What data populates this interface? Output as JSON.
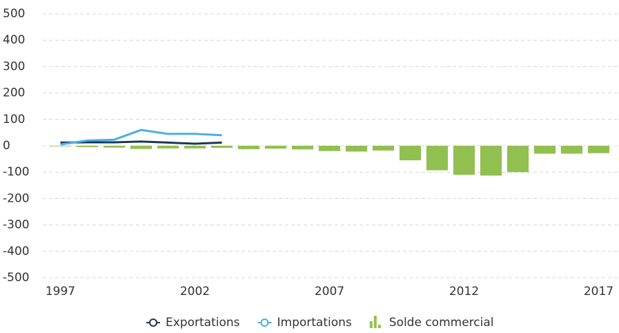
{
  "chart_data": {
    "type": "bar-line",
    "x": [
      1997,
      1998,
      1999,
      2000,
      2001,
      2002,
      2003,
      2004,
      2005,
      2006,
      2007,
      2008,
      2009,
      2010,
      2011,
      2012,
      2013,
      2014,
      2015,
      2016,
      2017
    ],
    "xlim": [
      1996.5,
      2017.5
    ],
    "xticks": [
      1997,
      2002,
      2007,
      2012,
      2017
    ],
    "ylim": [
      -500,
      500
    ],
    "yticks": [
      -500,
      -400,
      -300,
      -200,
      -100,
      0,
      100,
      200,
      300,
      400,
      500
    ],
    "grid": true,
    "legend": "bottom",
    "series": [
      {
        "name": "Exportations",
        "type": "line",
        "color": "#1d3557",
        "values": [
          12,
          13,
          13,
          16,
          12,
          8,
          12,
          null,
          null,
          null,
          null,
          null,
          null,
          null,
          null,
          null,
          null,
          null,
          null,
          null,
          null
        ]
      },
      {
        "name": "Importations",
        "type": "line",
        "color": "#4cade6",
        "values": [
          5,
          20,
          23,
          60,
          45,
          45,
          40,
          null,
          null,
          null,
          null,
          null,
          null,
          null,
          null,
          null,
          null,
          null,
          null,
          null,
          null
        ]
      },
      {
        "name": "Solde commercial",
        "type": "bar",
        "color": "#92c050",
        "values": [
          -2,
          -5,
          -7,
          -12,
          -10,
          -10,
          -8,
          -13,
          -11,
          -14,
          -20,
          -22,
          -18,
          -55,
          -93,
          -110,
          -113,
          -100,
          -30,
          -30,
          -28
        ]
      }
    ]
  }
}
